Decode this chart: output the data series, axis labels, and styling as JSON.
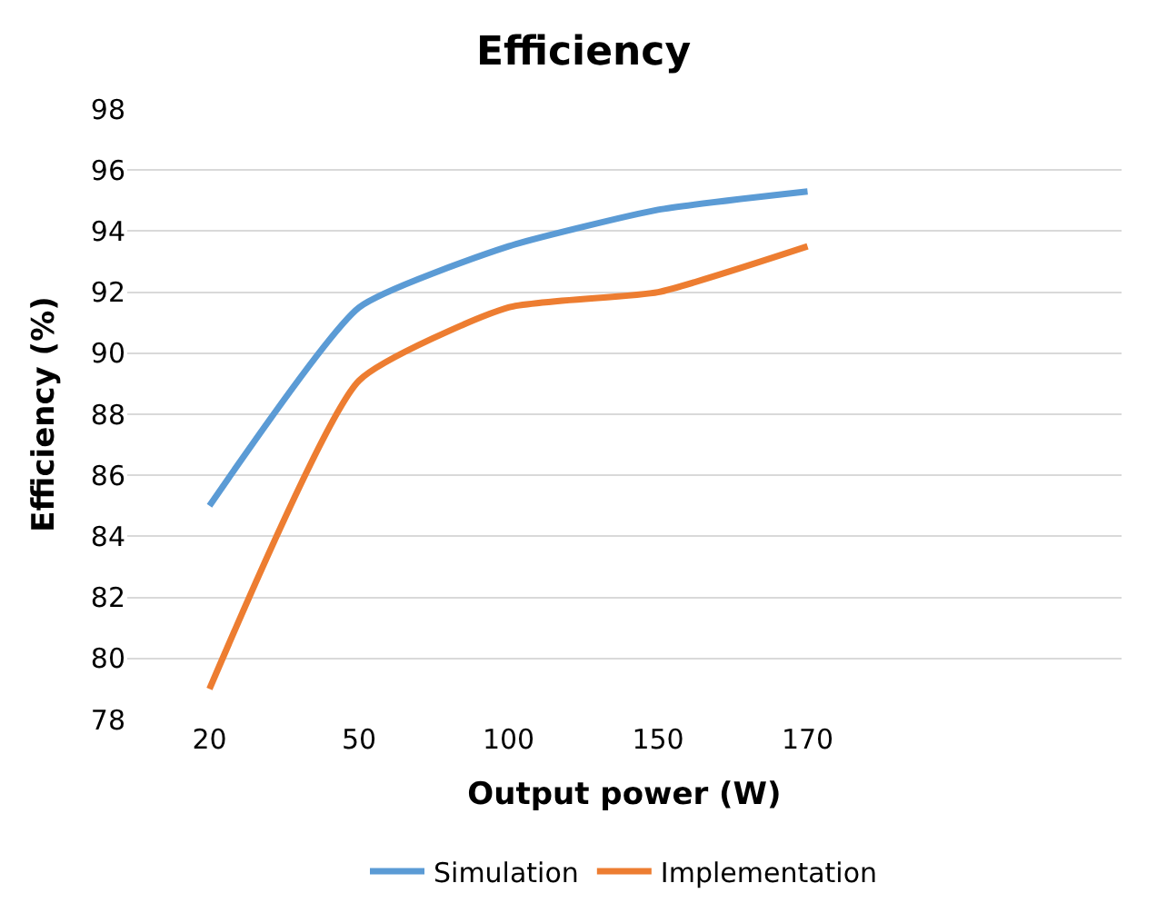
{
  "chart_data": {
    "type": "line",
    "title": "Efficiency",
    "xlabel": "Output power (W)",
    "ylabel": "Efficiency (%)",
    "categories": [
      "20",
      "50",
      "100",
      "150",
      "170"
    ],
    "series": [
      {
        "name": "Simulation",
        "color": "#5b9bd5",
        "values": [
          85,
          91.5,
          93.5,
          94.7,
          95.3
        ]
      },
      {
        "name": "Implementation",
        "color": "#ed7d31",
        "values": [
          79,
          89.1,
          91.5,
          92,
          93.5
        ]
      }
    ],
    "ylim": [
      78,
      98
    ],
    "yticks": [
      78,
      80,
      82,
      84,
      86,
      88,
      90,
      92,
      94,
      96,
      98
    ],
    "grid": "y",
    "legend": "bottom",
    "marker": "none",
    "line_style": "solid"
  }
}
